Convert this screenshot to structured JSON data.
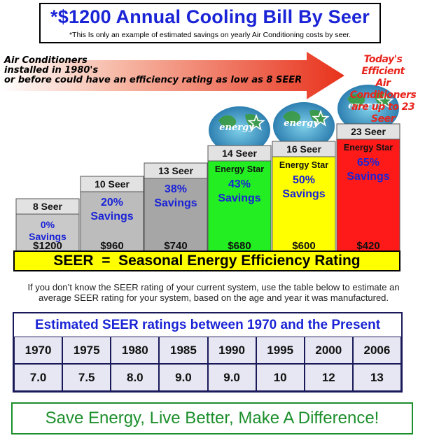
{
  "header": {
    "title": "*$1200 Annual Cooling Bill By Seer",
    "note": "*This Is only an example of estimated savings on yearly Air Conditioning costs by seer."
  },
  "arrow": {
    "left_lines": [
      "Air Conditioners",
      "installed in 1980's",
      "or before could have an efficiency rating as low as 8 SEER"
    ],
    "right_lines": [
      "Today's Efficient",
      "Air Conditioners",
      "are up to 23 Seer"
    ]
  },
  "chart_data": {
    "type": "bar",
    "categories": [
      "8 Seer",
      "10 Seer",
      "13 Seer",
      "14 Seer",
      "16 Seer",
      "23 Seer"
    ],
    "series": [
      {
        "name": "Annual Cooling Bill",
        "values": [
          1200,
          960,
          740,
          680,
          600,
          420
        ]
      }
    ],
    "value_labels": [
      "$1200",
      "$960",
      "$740",
      "$680",
      "$600",
      "$420"
    ],
    "savings_pct": [
      0,
      20,
      38,
      43,
      50,
      65
    ],
    "savings_labels": [
      "0%",
      "20%",
      "38%",
      "43%",
      "50%",
      "65%"
    ],
    "savings_word": "Savings",
    "energy_star": [
      false,
      false,
      false,
      true,
      true,
      true
    ],
    "energy_star_label": "Energy Star",
    "logo_text": "energy",
    "colors": [
      "#c9c9c9",
      "#bcbcbc",
      "#a6a6a6",
      "#22ee22",
      "#ffff00",
      "#ff1a1a"
    ],
    "ylim": [
      0,
      1200
    ]
  },
  "band": {
    "text": "SEER  =  Seasonal Energy Efficiency Rating"
  },
  "info": {
    "text": "If you don’t know the SEER rating of your current system, use the table below to estimate an average SEER rating for your system, based on the age and year it was manufactured."
  },
  "table": {
    "title": "Estimated SEER ratings between 1970 and the Present",
    "years": [
      "1970",
      "1975",
      "1980",
      "1985",
      "1990",
      "1995",
      "2000",
      "2006"
    ],
    "ratings": [
      "7.0",
      "7.5",
      "8.0",
      "9.0",
      "9.0",
      "10",
      "12",
      "13"
    ]
  },
  "footer": {
    "text": "Save Energy, Live Better, Make A Difference!"
  }
}
